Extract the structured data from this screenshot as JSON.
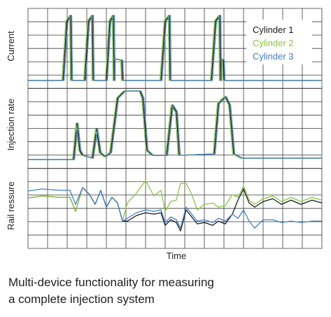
{
  "chart_data": {
    "type": "line",
    "xlabel": "Time",
    "legend": {
      "placement": "top-right",
      "entries": [
        {
          "name": "Cylinder 1",
          "color": "#1a1a1a"
        },
        {
          "name": "Cylinder 2",
          "color": "#8cc63f"
        },
        {
          "name": "Cylinder 3",
          "color": "#3f7fc8"
        }
      ]
    },
    "grid": true,
    "panels": [
      {
        "ylabel": "Current"
      },
      {
        "ylabel": "Injection rate"
      },
      {
        "ylabel": "Rail ressure"
      }
    ]
  },
  "caption": {
    "line1": "Multi-device functionality for measuring",
    "line2": "a complete injection system"
  }
}
